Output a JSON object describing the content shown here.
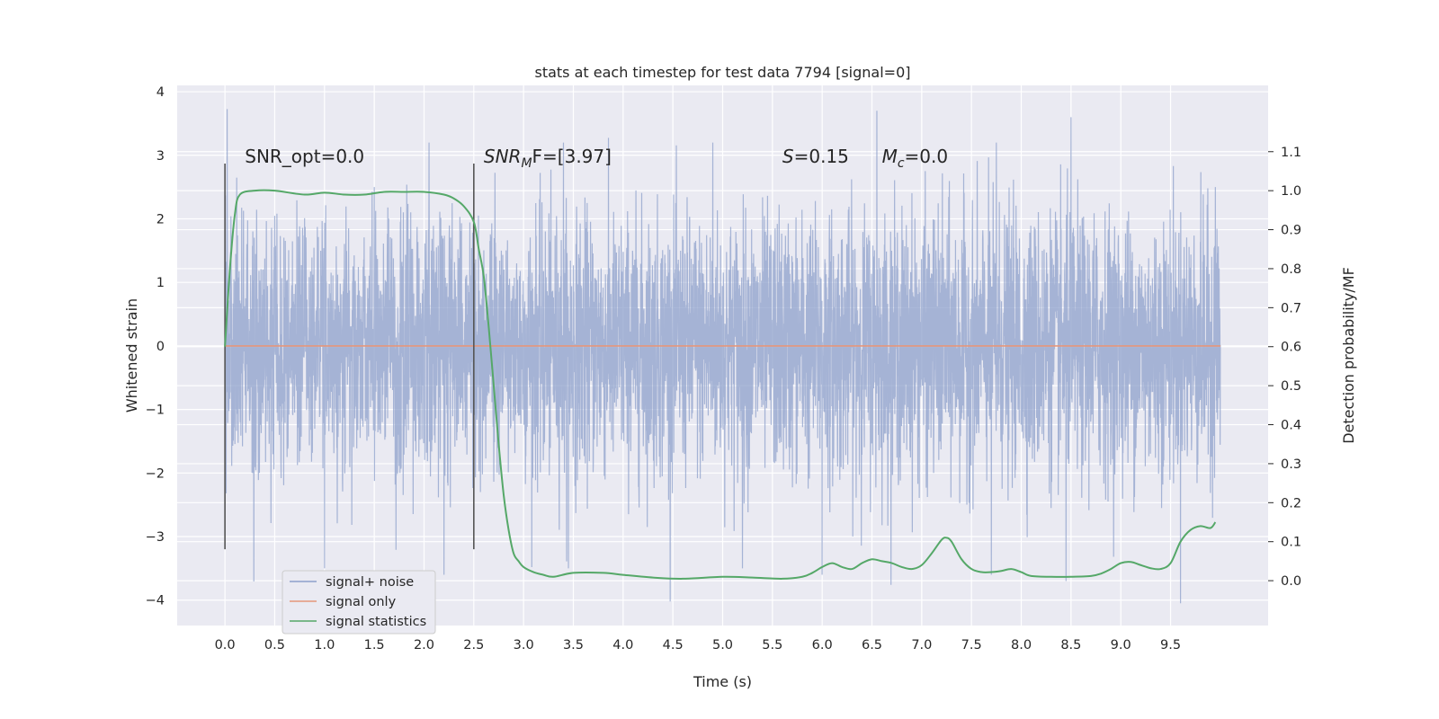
{
  "chart_data": {
    "type": "line",
    "title": "stats at each timestep for test data 7794 [signal=0]",
    "xlabel": "Time (s)",
    "ylabel": "Whitened strain",
    "y2label": "Detection probability/MF",
    "xlim": [
      -0.48,
      10.48
    ],
    "ylim": [
      -4.4,
      4.1
    ],
    "y2lim": [
      -0.115,
      1.27
    ],
    "xticks": [
      0.0,
      0.5,
      1.0,
      1.5,
      2.0,
      2.5,
      3.0,
      3.5,
      4.0,
      4.5,
      5.0,
      5.5,
      6.0,
      6.5,
      7.0,
      7.5,
      8.0,
      8.5,
      9.0,
      9.5
    ],
    "xtick_labels": [
      "0.0",
      "0.5",
      "1.0",
      "1.5",
      "2.0",
      "2.5",
      "3.0",
      "3.5",
      "4.0",
      "4.5",
      "5.0",
      "5.5",
      "6.0",
      "6.5",
      "7.0",
      "7.5",
      "8.0",
      "8.5",
      "9.0",
      "9.5"
    ],
    "yticks": [
      -4,
      -3,
      -2,
      -1,
      0,
      1,
      2,
      3,
      4
    ],
    "ytick_labels": [
      "−4",
      "−3",
      "−2",
      "−1",
      "0",
      "1",
      "2",
      "3",
      "4"
    ],
    "y2ticks": [
      0.0,
      0.1,
      0.2,
      0.3,
      0.4,
      0.5,
      0.6,
      0.7,
      0.8,
      0.9,
      1.0,
      1.1
    ],
    "y2tick_labels": [
      "0.0",
      "0.1",
      "0.2",
      "0.3",
      "0.4",
      "0.5",
      "0.6",
      "0.7",
      "0.8",
      "0.9",
      "1.0",
      "1.1"
    ],
    "grid": true,
    "legend_position": "lower-left",
    "series": [
      {
        "name": "signal+ noise",
        "axis": "left",
        "color": "#8da0cb",
        "style": "dense noisy strain trace",
        "x_range": [
          0.0,
          10.0
        ],
        "typical_range": [
          -1.6,
          1.7
        ],
        "peaks_high": [
          [
            1.5,
            2.5
          ],
          [
            2.05,
            3.2
          ],
          [
            3.4,
            3.2
          ],
          [
            4.9,
            3.2
          ],
          [
            6.55,
            3.7
          ],
          [
            7.75,
            3.2
          ],
          [
            8.5,
            3.6
          ],
          [
            9.95,
            2.5
          ]
        ],
        "peaks_low": [
          [
            1.0,
            -3.5
          ],
          [
            2.2,
            -3.6
          ],
          [
            3.45,
            -3.5
          ],
          [
            5.2,
            -3.5
          ],
          [
            6.0,
            -3.6
          ],
          [
            7.7,
            -3.6
          ],
          [
            8.45,
            -3.7
          ],
          [
            9.6,
            -4.05
          ]
        ]
      },
      {
        "name": "signal only",
        "axis": "left",
        "color": "#e5967a",
        "x": [
          0.0,
          10.0
        ],
        "y": [
          0.0,
          0.0
        ]
      },
      {
        "name": "signal statistics",
        "axis": "right",
        "color": "#55a868",
        "x": [
          0.0,
          0.05,
          0.1,
          0.15,
          0.3,
          0.5,
          0.8,
          1.0,
          1.2,
          1.4,
          1.6,
          1.8,
          2.0,
          2.2,
          2.3,
          2.4,
          2.5,
          2.55,
          2.6,
          2.65,
          2.7,
          2.75,
          2.8,
          2.85,
          2.9,
          2.95,
          3.0,
          3.1,
          3.2,
          3.3,
          3.5,
          3.8,
          4.0,
          4.3,
          4.6,
          5.0,
          5.3,
          5.6,
          5.8,
          5.9,
          6.0,
          6.1,
          6.2,
          6.3,
          6.4,
          6.5,
          6.6,
          6.7,
          6.8,
          6.9,
          7.0,
          7.1,
          7.2,
          7.25,
          7.3,
          7.4,
          7.5,
          7.6,
          7.7,
          7.8,
          7.9,
          8.0,
          8.1,
          8.3,
          8.5,
          8.7,
          8.8,
          8.9,
          9.0,
          9.1,
          9.2,
          9.3,
          9.4,
          9.5,
          9.6,
          9.7,
          9.8,
          9.9,
          9.95
        ],
        "y": [
          0.6,
          0.8,
          0.94,
          0.99,
          1.0,
          1.0,
          0.99,
          0.995,
          0.99,
          0.99,
          0.997,
          0.997,
          0.997,
          0.99,
          0.98,
          0.96,
          0.92,
          0.85,
          0.78,
          0.65,
          0.5,
          0.35,
          0.22,
          0.13,
          0.07,
          0.05,
          0.035,
          0.022,
          0.015,
          0.01,
          0.02,
          0.02,
          0.015,
          0.008,
          0.005,
          0.01,
          0.008,
          0.005,
          0.01,
          0.02,
          0.035,
          0.045,
          0.035,
          0.03,
          0.045,
          0.055,
          0.05,
          0.045,
          0.035,
          0.03,
          0.04,
          0.07,
          0.105,
          0.11,
          0.1,
          0.055,
          0.03,
          0.022,
          0.022,
          0.025,
          0.03,
          0.022,
          0.012,
          0.01,
          0.01,
          0.012,
          0.018,
          0.03,
          0.045,
          0.048,
          0.04,
          0.032,
          0.03,
          0.045,
          0.1,
          0.13,
          0.14,
          0.135,
          0.15
        ]
      }
    ],
    "vlines": [
      0.0,
      2.5
    ],
    "annotations": [
      {
        "text": "SNR_opt=0.0",
        "x": 0.2,
        "y": 3.0
      },
      {
        "text": "SNR",
        "sub": "M",
        "tail": "F=[3.97]",
        "italic_prefix": true,
        "x": 2.6,
        "y": 3.0
      },
      {
        "text": "S",
        "tail": "=0.15",
        "italic_prefix": true,
        "x": 5.6,
        "y": 3.0
      },
      {
        "text": "M",
        "sub": "c",
        "tail": "=0.0",
        "italic_prefix": true,
        "x": 6.6,
        "y": 3.0
      }
    ]
  }
}
